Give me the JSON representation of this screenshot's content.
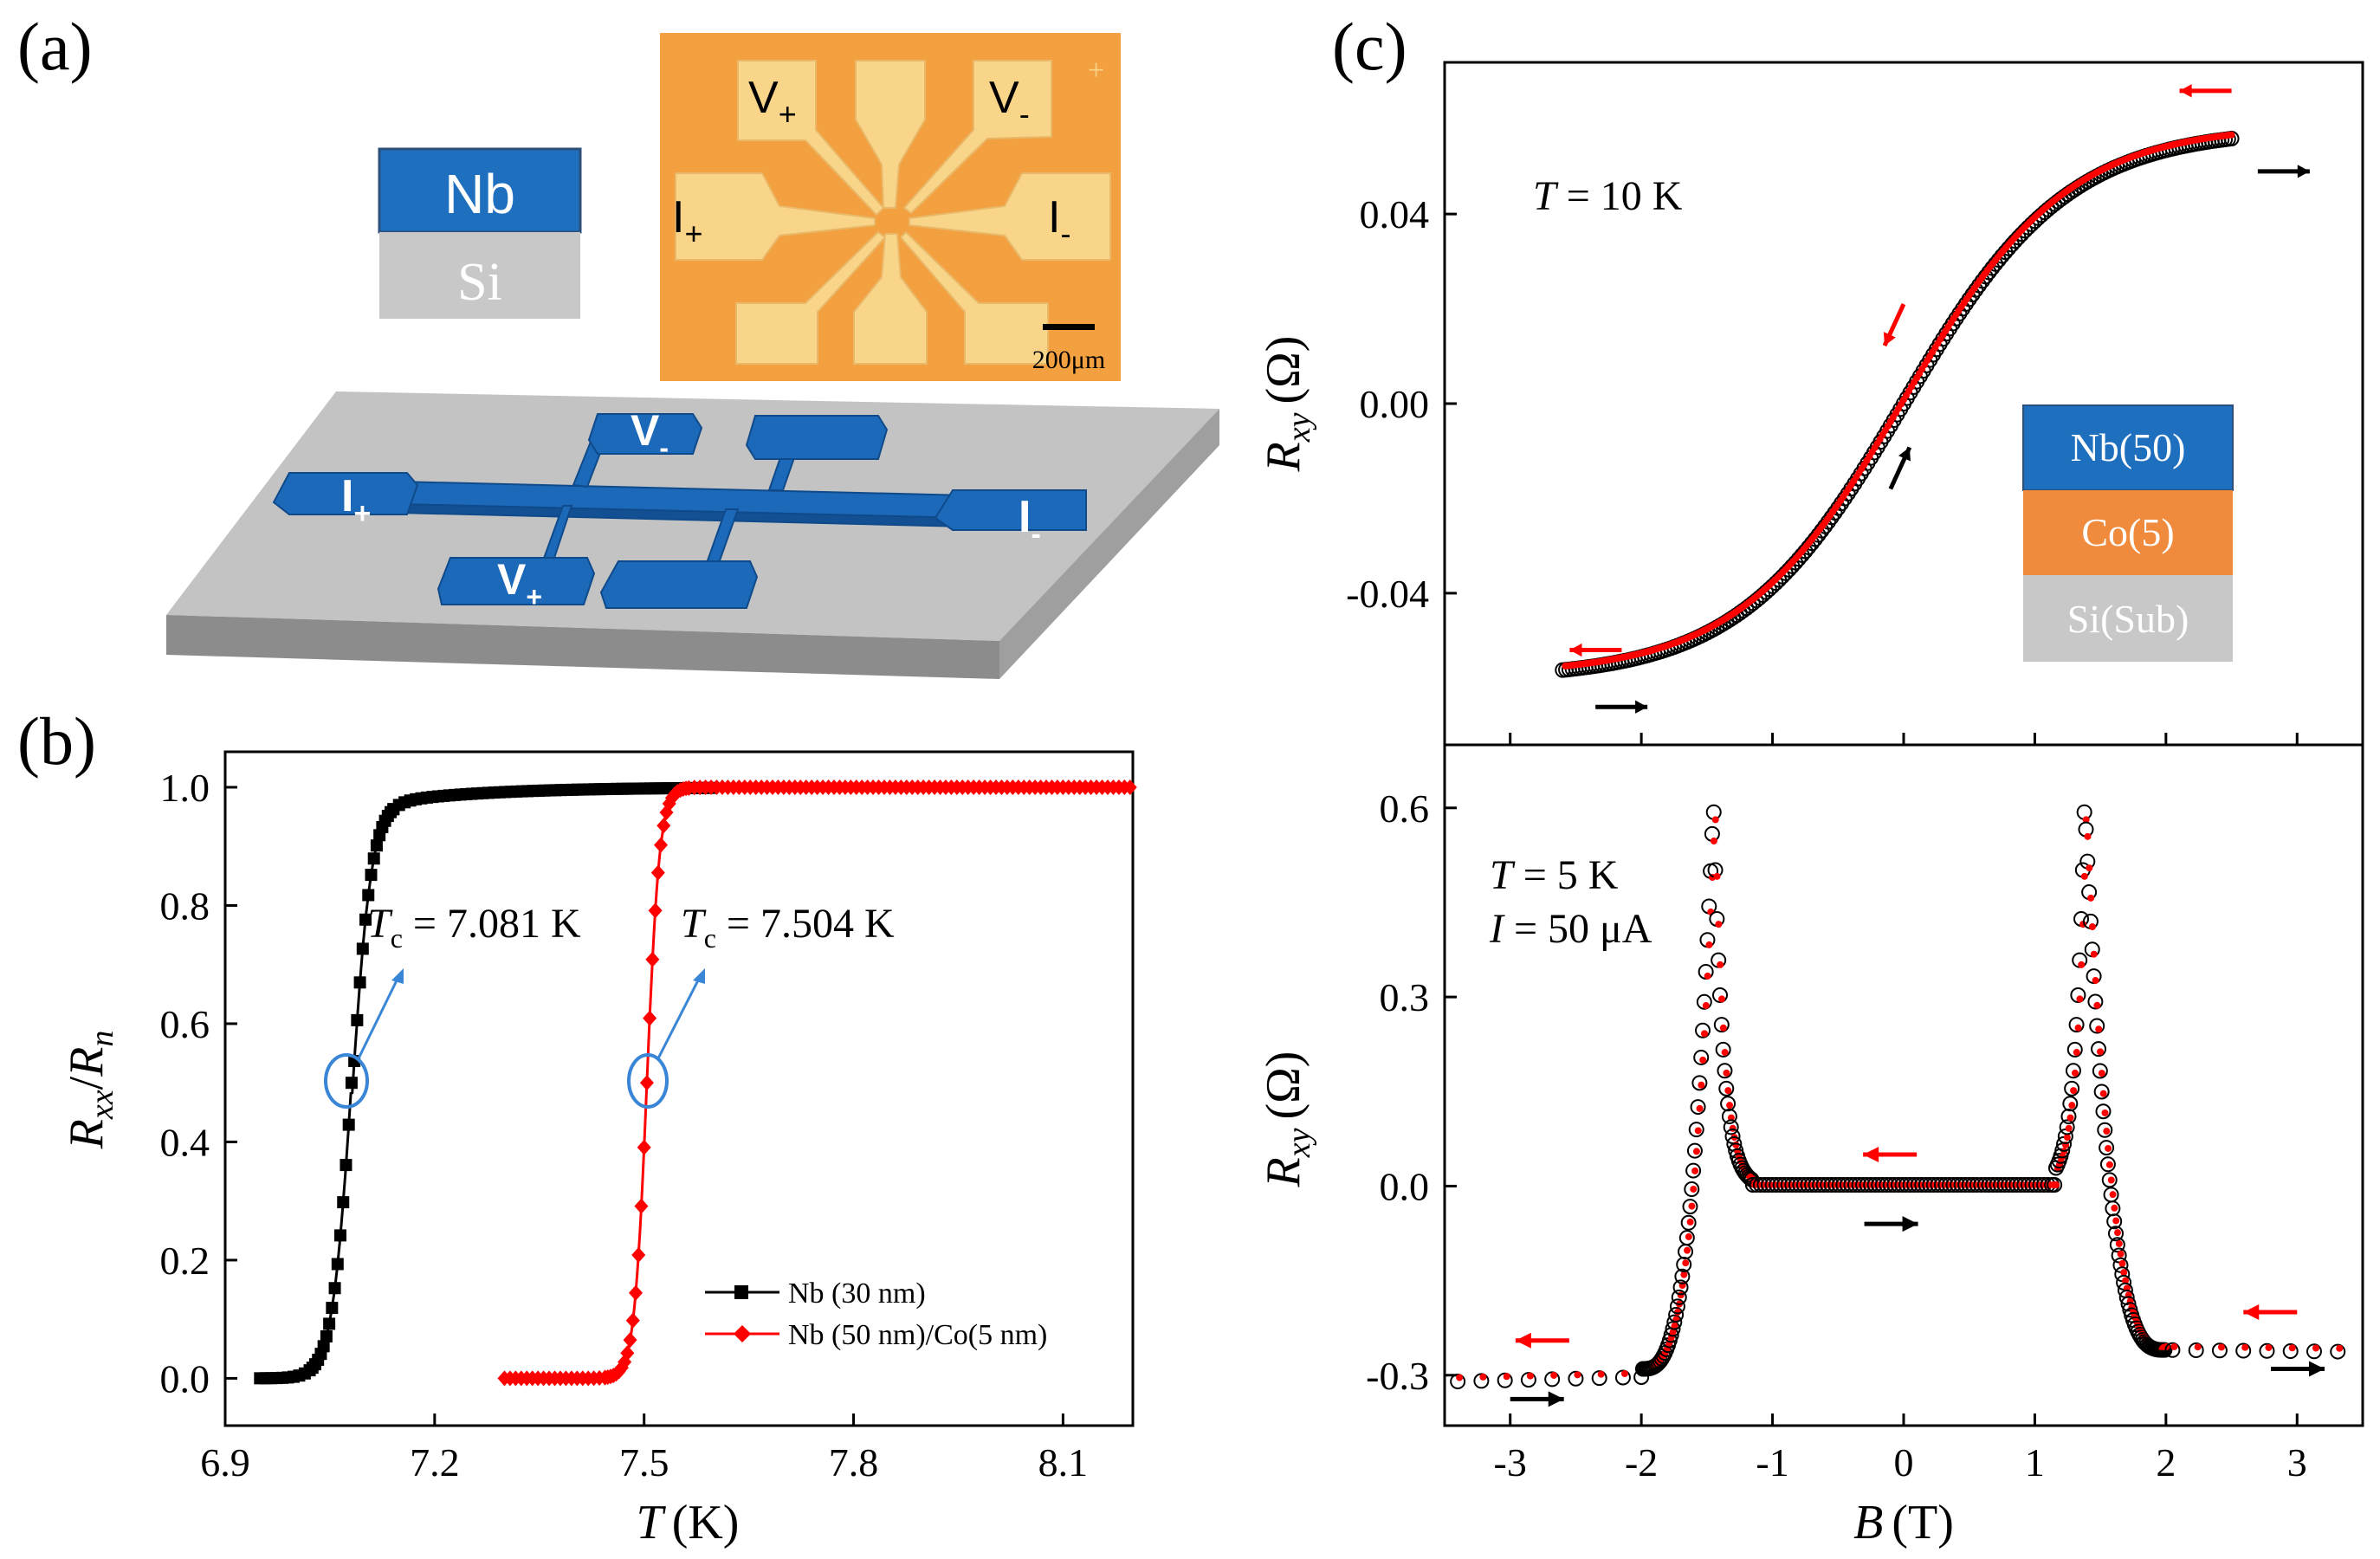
{
  "panel_labels": {
    "a": "(a)",
    "b": "(b)",
    "c": "(c)"
  },
  "colors": {
    "black": "#000000",
    "red": "#ff0000",
    "nb_blue": "#1f6fbf",
    "si_gray": "#c8c8c8",
    "co_orange": "#f08a3c",
    "photo_orange": "#f2a040",
    "pad_light": "#f9d58a",
    "circle_blue": "#3a86d6"
  },
  "panel_a": {
    "stack": {
      "top": "Nb",
      "bottom": "Si"
    },
    "photo": {
      "v_plus": "V",
      "v_plus_sub": "+",
      "v_minus": "V",
      "v_minus_sub": "-",
      "i_plus": "I",
      "i_plus_sub": "+",
      "i_minus": "I",
      "i_minus_sub": "-",
      "scale": "200μm"
    },
    "device": {
      "i_plus": "I",
      "i_plus_sub": "+",
      "i_minus": "I",
      "i_minus_sub": "-",
      "v_plus": "V",
      "v_plus_sub": "+",
      "v_minus": "V",
      "v_minus_sub": "-"
    }
  },
  "chart_data": [
    {
      "id": "b",
      "type": "line",
      "xlabel": "T",
      "xunit": "(K)",
      "ylabel": "R",
      "ylabel_sub": "xx",
      "ylabel_den": "R",
      "ylabel_den_sub": "n",
      "xlim": [
        6.9,
        8.2
      ],
      "ylim": [
        -0.08,
        1.06
      ],
      "xticks": [
        "6.9",
        "7.2",
        "7.5",
        "7.8",
        "8.1"
      ],
      "yticks": [
        "0.0",
        "0.2",
        "0.4",
        "0.6",
        "0.8",
        "1.0"
      ],
      "series": [
        {
          "name": "Nb (30 nm)",
          "color": "#000000",
          "marker": "square",
          "tc": 7.081,
          "width": 0.014,
          "tmin": 6.95,
          "tmax": 7.6
        },
        {
          "name": "Nb (50 nm)/Co(5 nm)",
          "color": "#ff0000",
          "marker": "diamond",
          "tc": 7.504,
          "width": 0.009,
          "tmin": 7.3,
          "tmax": 8.2
        }
      ],
      "annotations": [
        {
          "prefix": "T",
          "sub": "c",
          "text": " = 7.081 K"
        },
        {
          "prefix": "T",
          "sub": "c",
          "text": " = 7.504 K"
        }
      ],
      "legend": "bottom-right"
    },
    {
      "id": "c_top",
      "type": "scatter",
      "xlim": [
        -3.5,
        3.5
      ],
      "ylim": [
        -0.072,
        0.072
      ],
      "yticks": [
        "-0.04",
        "0.00",
        "0.04"
      ],
      "ytick_values": [
        -0.04,
        0.0,
        0.04
      ],
      "ylabel": "R",
      "ylabel_sub": "xy",
      "yunit": "(Ω)",
      "temp_label": "T",
      "temp_value": " = 10 K",
      "stack": [
        "Nb(50)",
        "Co(5)",
        "Si(Sub)"
      ],
      "saturation": 0.058,
      "bmin": -2.6,
      "bmax": 2.5
    },
    {
      "id": "c_bottom",
      "type": "scatter",
      "xlim": [
        -3.5,
        3.5
      ],
      "ylim": [
        -0.38,
        0.7
      ],
      "yticks": [
        "-0.3",
        "0.0",
        "0.3",
        "0.6"
      ],
      "ytick_values": [
        -0.3,
        0.0,
        0.3,
        0.6
      ],
      "xticks": [
        "-3",
        "-2",
        "-1",
        "0",
        "1",
        "2",
        "3"
      ],
      "xtick_values": [
        -3,
        -2,
        -1,
        0,
        1,
        2,
        3
      ],
      "xlabel": "B",
      "xunit": "(T)",
      "ylabel": "R",
      "ylabel_sub": "xy",
      "yunit": "(Ω)",
      "temp_label": "T",
      "temp_value": " = 5 K",
      "current_label": "I",
      "current_value": " = 50 μA",
      "peak_left": -1.45,
      "peak_right": 1.38,
      "peak_height": 0.61,
      "plateau_left": -0.31,
      "plateau_right": -0.26,
      "bmin": -3.4,
      "bmax": 3.4
    }
  ]
}
